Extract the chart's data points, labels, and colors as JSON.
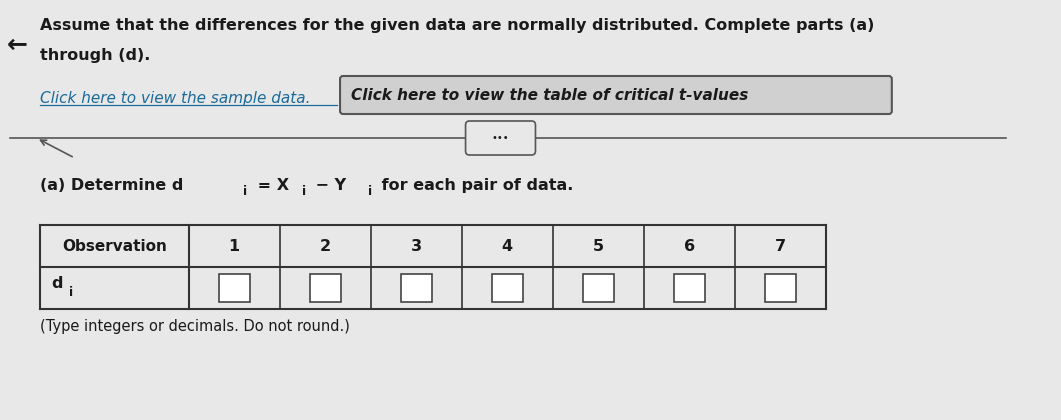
{
  "background_color": "#e8e8e8",
  "title_line1": "Assume that the differences for the given data are normally distributed. Complete parts (a)",
  "title_line2": "through (d).",
  "link1_text": "Click here to view the sample data.",
  "link2_text": "Click here to view the table of critical t-values",
  "part_a_label": "(a) Determine d",
  "part_a_sub": "i",
  "part_a_eq": " = X",
  "part_a_sub2": "i",
  "part_a_minus": " − Y",
  "part_a_sub3": "i",
  "part_a_end": " for each pair of data.",
  "table_header": [
    "Observation",
    "1",
    "2",
    "3",
    "4",
    "5",
    "6",
    "7"
  ],
  "row_label": "d",
  "row_label_sub": "i",
  "footer_text": "(Type integers or decimals. Do not round.)",
  "arrow_symbol": "←",
  "dots_text": "•••",
  "font_color": "#1a1a1a",
  "link_color": "#1a6b9a",
  "link2_bg": "#d0d0d0",
  "table_border_color": "#333333",
  "cell_bg": "#ffffff",
  "divider_color": "#555555"
}
